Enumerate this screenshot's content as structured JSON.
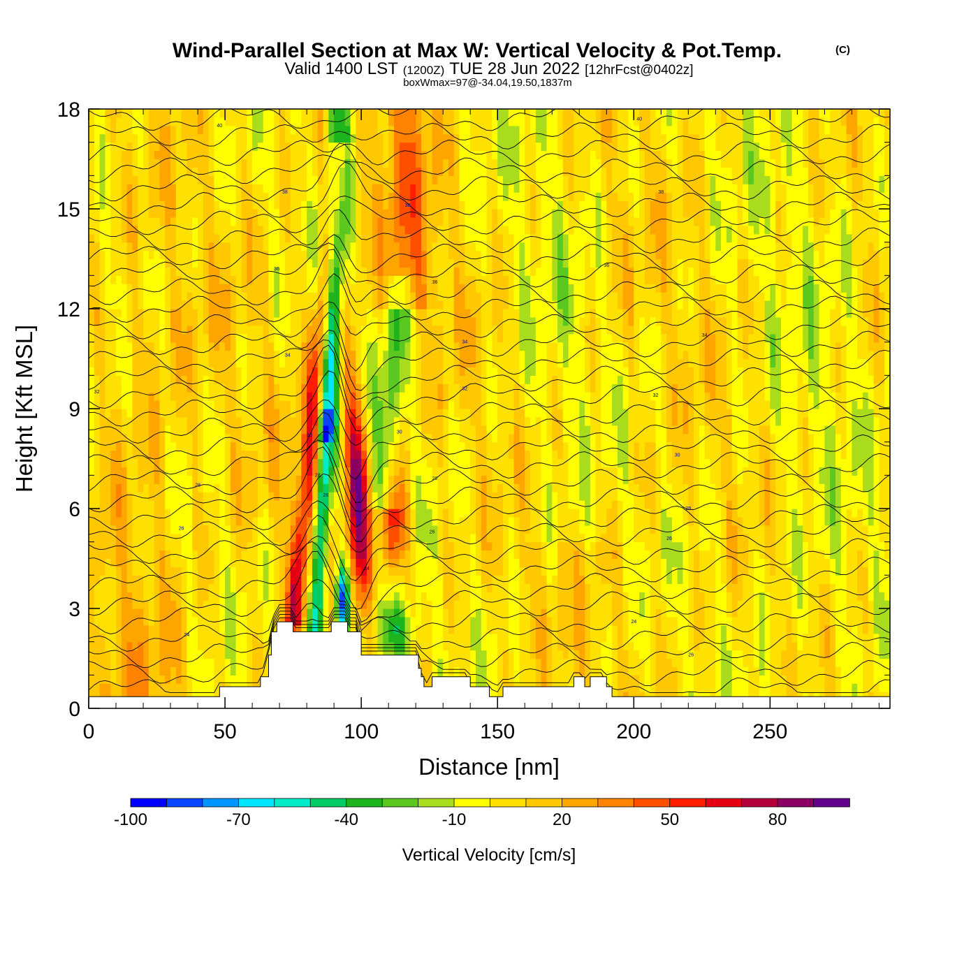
{
  "chart_data": {
    "type": "heatmap",
    "title": "Wind-Parallel Section at Max W: Vertical Velocity & Pot.Temp.",
    "title_mark": "(C)",
    "subtitle": {
      "part1": "Valid 1400 LST",
      "part2": "(1200Z)",
      "part3": "TUE 28 Jun 2022",
      "part4": "[12hrFcst@0402z]"
    },
    "box_info": "boxWmax=97@-34.04,19.50,1837m",
    "xlabel": "Distance [nm]",
    "ylabel": "Height [Kft MSL]",
    "xlim": [
      0,
      294
    ],
    "ylim": [
      0,
      18
    ],
    "x_ticks": [
      0,
      50,
      100,
      150,
      200,
      250
    ],
    "y_ticks": [
      0,
      3,
      6,
      9,
      12,
      15,
      18
    ],
    "colorbar": {
      "label": "Vertical Velocity [cm/s]",
      "tick_labels": [
        "-100",
        "-70",
        "-40",
        "-10",
        "20",
        "50",
        "80"
      ],
      "tick_values": [
        -100,
        -70,
        -40,
        -10,
        20,
        50,
        80
      ],
      "boundaries": [
        -100,
        -90,
        -80,
        -70,
        -60,
        -50,
        -40,
        -30,
        -20,
        -10,
        0,
        10,
        20,
        30,
        40,
        50,
        60,
        70,
        80,
        90,
        100
      ],
      "colors": [
        "#0000ff",
        "#0a46ff",
        "#0096ff",
        "#00e6ff",
        "#00ebc8",
        "#00cc64",
        "#1eb41e",
        "#5ac81e",
        "#aadc1e",
        "#ffff00",
        "#ffe100",
        "#ffc800",
        "#ffa500",
        "#ff8200",
        "#ff5000",
        "#ff1e00",
        "#e60014",
        "#b4003c",
        "#8c0064",
        "#64008c"
      ]
    },
    "contour_labels": [
      {
        "text": "40",
        "x": 48,
        "y": 17.5
      },
      {
        "text": "40",
        "x": 202,
        "y": 17.7
      },
      {
        "text": "38",
        "x": 72,
        "y": 15.5
      },
      {
        "text": "38",
        "x": 117,
        "y": 15.1
      },
      {
        "text": "38",
        "x": 210,
        "y": 15.5
      },
      {
        "text": "36",
        "x": 69,
        "y": 13.2
      },
      {
        "text": "36",
        "x": 127,
        "y": 12.8
      },
      {
        "text": "36",
        "x": 190,
        "y": 13.3
      },
      {
        "text": "34",
        "x": 73,
        "y": 10.6
      },
      {
        "text": "34",
        "x": 138,
        "y": 11.0
      },
      {
        "text": "34",
        "x": 226,
        "y": 11.2
      },
      {
        "text": "32",
        "x": 3,
        "y": 9.5
      },
      {
        "text": "32",
        "x": 138,
        "y": 9.6
      },
      {
        "text": "32",
        "x": 208,
        "y": 9.4
      },
      {
        "text": "30",
        "x": 114,
        "y": 8.3
      },
      {
        "text": "30",
        "x": 81,
        "y": 8.2
      },
      {
        "text": "30",
        "x": 216,
        "y": 7.6
      },
      {
        "text": "28",
        "x": 40,
        "y": 6.7
      },
      {
        "text": "28",
        "x": 84,
        "y": 7.0
      },
      {
        "text": "28",
        "x": 127,
        "y": 6.9
      },
      {
        "text": "28",
        "x": 220,
        "y": 6.0
      },
      {
        "text": "26",
        "x": 34,
        "y": 5.4
      },
      {
        "text": "26",
        "x": 87,
        "y": 6.4
      },
      {
        "text": "26",
        "x": 126,
        "y": 5.3
      },
      {
        "text": "26",
        "x": 213,
        "y": 5.1
      },
      {
        "text": "24",
        "x": 36,
        "y": 2.2
      },
      {
        "text": "24",
        "x": 102,
        "y": 4.2
      },
      {
        "text": "24",
        "x": 200,
        "y": 2.6
      },
      {
        "text": "26",
        "x": 221,
        "y": 1.6
      }
    ]
  }
}
